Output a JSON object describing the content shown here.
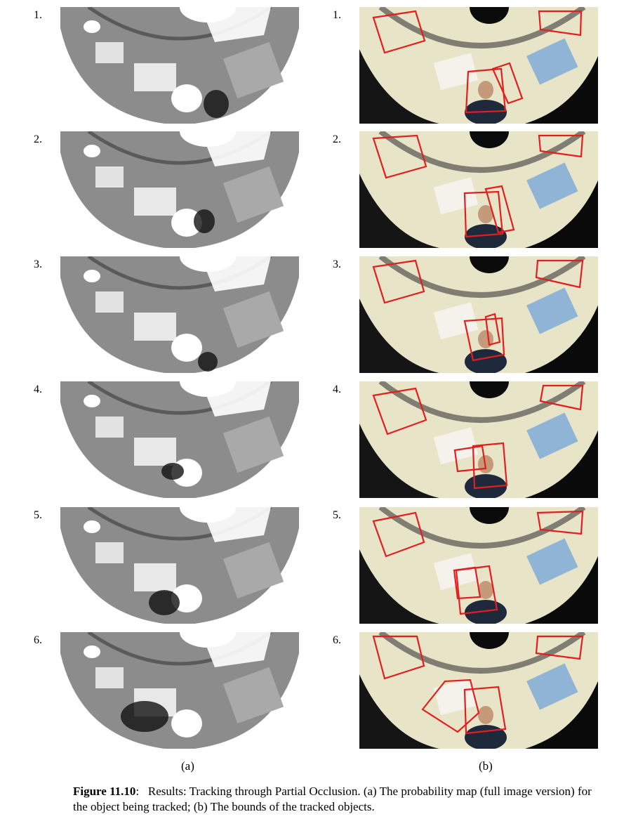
{
  "figure": {
    "rows": [
      {
        "num": "1."
      },
      {
        "num": "2."
      },
      {
        "num": "3."
      },
      {
        "num": "4."
      },
      {
        "num": "5."
      },
      {
        "num": "6."
      }
    ],
    "col_a_label": "(a)",
    "col_b_label": "(b)",
    "caption_label": "Figure 11.10",
    "caption_colon": ":",
    "caption_text": "Results: Tracking through Partial Occlusion. (a) The probability map (full image version) for the object being tracked; (b) The bounds of the tracked objects.",
    "colors": {
      "map_gray": "#8c8c8c",
      "map_light": "#a9a9a9",
      "tracker_box": "#e31e1e",
      "mirror_bg": "#e8e4c8",
      "dark": "#111111"
    }
  }
}
